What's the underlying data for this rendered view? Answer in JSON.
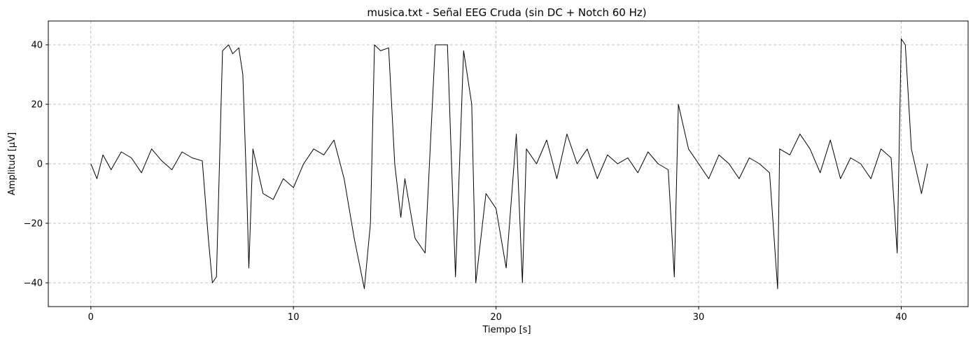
{
  "chart_data": {
    "type": "line",
    "title": "musica.txt - Señal EEG Cruda (sin DC + Notch 60 Hz)",
    "xlabel": "Tiempo [s]",
    "ylabel": "Amplitud [µV]",
    "xlim": [
      -2.1,
      43.3
    ],
    "ylim": [
      -48,
      48
    ],
    "xticks": [
      0,
      10,
      20,
      30,
      40
    ],
    "yticks": [
      -40,
      -20,
      0,
      20,
      40
    ],
    "grid": true,
    "line_color": "#000000",
    "series": [
      {
        "x": [
          0,
          0.3,
          0.6,
          1.0,
          1.5,
          2.0,
          2.5,
          3.0,
          3.5,
          4.0,
          4.5,
          5.0,
          5.5,
          5.8,
          6.0,
          6.2,
          6.5,
          6.8,
          7.0,
          7.3,
          7.5,
          7.7,
          7.8,
          8.0,
          8.5,
          9.0,
          9.5,
          10.0,
          10.5,
          11.0,
          11.5,
          12.0,
          12.5,
          13.0,
          13.5,
          13.8,
          14.0,
          14.3,
          14.7,
          15.0,
          15.3,
          15.5,
          16.0,
          16.5,
          17.0,
          17.3,
          17.6,
          18.0,
          18.4,
          18.8,
          19.0,
          19.5,
          20.0,
          20.5,
          21.0,
          21.3,
          21.5,
          22.0,
          22.5,
          23.0,
          23.5,
          24.0,
          24.5,
          25.0,
          25.5,
          26.0,
          26.5,
          27.0,
          27.5,
          28.0,
          28.5,
          28.8,
          29.0,
          29.5,
          30.0,
          30.5,
          31.0,
          31.5,
          32.0,
          32.5,
          33.0,
          33.5,
          33.9,
          34.0,
          34.5,
          35.0,
          35.5,
          36.0,
          36.5,
          37.0,
          37.5,
          38.0,
          38.5,
          39.0,
          39.5,
          39.8,
          40.0,
          40.2,
          40.5,
          41.0,
          41.3
        ],
        "y": [
          0,
          -5,
          3,
          -2,
          4,
          2,
          -3,
          5,
          1,
          -2,
          4,
          2,
          1,
          -25,
          -40,
          -38,
          38,
          40,
          37,
          39,
          30,
          -10,
          -35,
          5,
          -10,
          -12,
          -5,
          -8,
          0,
          5,
          3,
          8,
          -5,
          -25,
          -42,
          -20,
          40,
          38,
          39,
          0,
          -18,
          -5,
          -25,
          -30,
          40,
          40,
          40,
          -38,
          38,
          20,
          -40,
          -10,
          -15,
          -35,
          10,
          -40,
          5,
          0,
          8,
          -5,
          10,
          0,
          5,
          -5,
          3,
          0,
          2,
          -3,
          4,
          0,
          -2,
          -38,
          20,
          5,
          0,
          -5,
          3,
          0,
          -5,
          2,
          0,
          -3,
          -42,
          5,
          3,
          10,
          5,
          -3,
          8,
          -5,
          2,
          0,
          -5,
          5,
          2,
          -30,
          42,
          40,
          5,
          -10,
          0
        ]
      }
    ]
  }
}
